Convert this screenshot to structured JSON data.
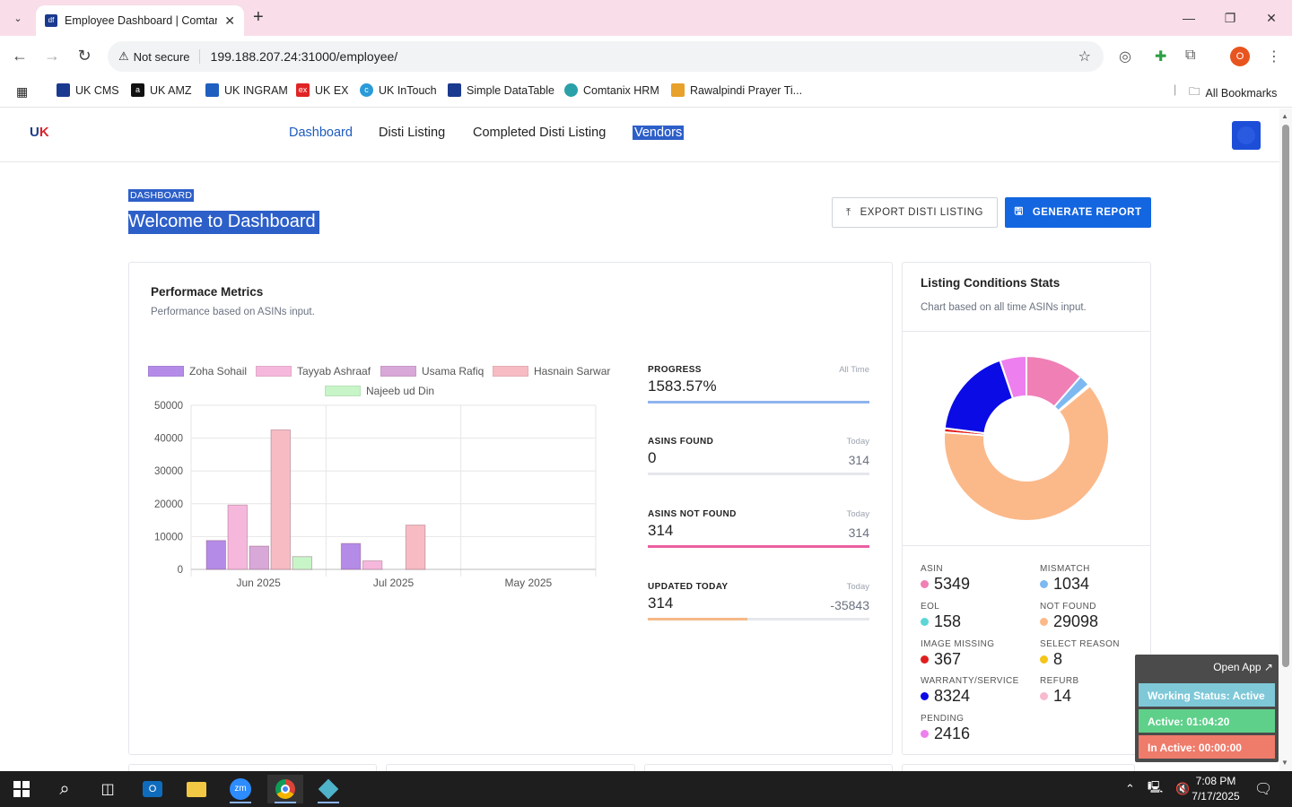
{
  "browser": {
    "tab_title": "Employee Dashboard | Comtanix",
    "url": "199.188.207.24:31000/employee/",
    "not_secure": "Not secure",
    "bookmarks": [
      "UK CMS",
      "UK AMZ",
      "UK INGRAM",
      "UK EX",
      "UK InTouch",
      "Simple DataTable",
      "Comtanix HRM",
      "Rawalpindi Prayer Ti..."
    ],
    "all_bookmarks": "All Bookmarks",
    "profile_initial": "O"
  },
  "nav": {
    "items": [
      "Dashboard",
      "Disti Listing",
      "Completed Disti Listing",
      "Vendors"
    ]
  },
  "page": {
    "breadcrumb": "DASHBOARD",
    "title": "Welcome to Dashboard",
    "export_label": "EXPORT DISTI LISTING",
    "report_label": "GENERATE REPORT"
  },
  "performance": {
    "title": "Performace Metrics",
    "subtitle": "Performance based on ASINs input.",
    "metrics": [
      {
        "label": "PROGRESS",
        "period": "All Time",
        "value": "1583.57%",
        "right": "",
        "fill": 1.0,
        "color": "#8fb4ee"
      },
      {
        "label": "ASINS FOUND",
        "period": "Today",
        "value": "0",
        "right": "314",
        "fill": 0.0,
        "color": "#9ca3af"
      },
      {
        "label": "ASINS NOT FOUND",
        "period": "Today",
        "value": "314",
        "right": "314",
        "fill": 1.0,
        "color": "#ec5fa0"
      },
      {
        "label": "UPDATED TODAY",
        "period": "Today",
        "value": "314",
        "right": "-35843",
        "fill": 0.45,
        "color": "#f5b98a"
      }
    ]
  },
  "chart_data": {
    "type": "bar",
    "categories": [
      "Jun 2025",
      "Jul 2025",
      "May 2025"
    ],
    "series": [
      {
        "name": "Zoha Sohail",
        "color": "#b58be8",
        "values": [
          8800,
          7900,
          0
        ]
      },
      {
        "name": "Tayyab Ashraaf",
        "color": "#f5b8dc",
        "values": [
          19600,
          2600,
          0
        ]
      },
      {
        "name": "Usama Rafiq",
        "color": "#d8a8d8",
        "values": [
          7100,
          0,
          0
        ]
      },
      {
        "name": "Hasnain Sarwar",
        "color": "#f7bcc3",
        "values": [
          42500,
          13500,
          0
        ]
      },
      {
        "name": "Najeeb ud Din",
        "color": "#c8f5c8",
        "values": [
          3900,
          0,
          0
        ]
      }
    ],
    "yticks": [
      "50000",
      "40000",
      "30000",
      "20000",
      "10000",
      "0"
    ],
    "ylim": [
      0,
      50000
    ],
    "grid": true,
    "legend": "top"
  },
  "conditions": {
    "title": "Listing Conditions Stats",
    "subtitle": "Chart based on all time ASINs input.",
    "donut": [
      {
        "label": "ASIN",
        "value": 5349,
        "color": "#f07fb6"
      },
      {
        "label": "MISMATCH",
        "value": 1034,
        "color": "#7db9f0"
      },
      {
        "label": "EOL",
        "value": 158,
        "color": "#5ed6d6"
      },
      {
        "label": "NOT FOUND",
        "value": 29098,
        "color": "#fbb98a"
      },
      {
        "label": "IMAGE MISSING",
        "value": 367,
        "color": "#e11d1d"
      },
      {
        "label": "SELECT REASON",
        "value": 8,
        "color": "#f5c518"
      },
      {
        "label": "WARRANTY/SERVICE",
        "value": 8324,
        "color": "#0b0be6"
      },
      {
        "label": "REFURB",
        "value": 14,
        "color": "#f7b8d0"
      },
      {
        "label": "PENDING",
        "value": 2416,
        "color": "#ee7fee"
      }
    ]
  },
  "widget": {
    "open_app": "Open App ↗",
    "working_status": "Working Status: Active",
    "active": "Active: 01:04:20",
    "inactive": "In Active: 00:00:00"
  },
  "taskbar": {
    "time": "7:08 PM",
    "date": "7/17/2025"
  }
}
